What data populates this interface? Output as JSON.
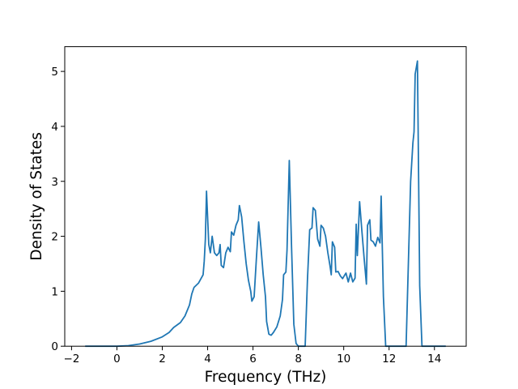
{
  "chart_data": {
    "type": "line",
    "x_label": "Frequency (THz)",
    "y_label": "Density of States",
    "x": [
      -1.4,
      0,
      0.5,
      1,
      1.5,
      2,
      2.3,
      2.5,
      2.8,
      3.0,
      3.2,
      3.3,
      3.4,
      3.6,
      3.8,
      3.85,
      3.9,
      3.95,
      4.05,
      4.12,
      4.2,
      4.3,
      4.4,
      4.5,
      4.55,
      4.6,
      4.7,
      4.8,
      4.9,
      5.0,
      5.05,
      5.15,
      5.25,
      5.35,
      5.4,
      5.5,
      5.6,
      5.7,
      5.8,
      5.9,
      5.95,
      6.05,
      6.15,
      6.25,
      6.35,
      6.45,
      6.55,
      6.6,
      6.7,
      6.8,
      6.9,
      7.05,
      7.2,
      7.3,
      7.35,
      7.45,
      7.5,
      7.6,
      7.7,
      7.8,
      7.9,
      8.0,
      8.2,
      8.3,
      8.4,
      8.5,
      8.6,
      8.65,
      8.75,
      8.85,
      8.95,
      9.0,
      9.1,
      9.2,
      9.3,
      9.4,
      9.45,
      9.5,
      9.6,
      9.65,
      9.75,
      9.85,
      9.95,
      10.05,
      10.1,
      10.2,
      10.3,
      10.4,
      10.5,
      10.55,
      10.6,
      10.7,
      10.8,
      10.9,
      11.0,
      11.05,
      11.15,
      11.2,
      11.3,
      11.4,
      11.5,
      11.6,
      11.65,
      11.75,
      11.85,
      12.0,
      12.5,
      12.75,
      12.85,
      12.95,
      13.05,
      13.1,
      13.15,
      13.25,
      13.35,
      13.45,
      14.0,
      14.5
    ],
    "series": [
      {
        "color": "#1f77b4",
        "values": [
          0,
          0,
          0.01,
          0.04,
          0.09,
          0.17,
          0.25,
          0.34,
          0.43,
          0.55,
          0.75,
          0.95,
          1.07,
          1.15,
          1.3,
          1.55,
          1.95,
          2.82,
          1.85,
          1.7,
          2.0,
          1.7,
          1.65,
          1.7,
          1.85,
          1.47,
          1.43,
          1.7,
          1.8,
          1.72,
          2.08,
          2.02,
          2.2,
          2.3,
          2.56,
          2.35,
          1.9,
          1.5,
          1.2,
          1.0,
          0.82,
          0.9,
          1.6,
          2.26,
          1.8,
          1.3,
          0.9,
          0.45,
          0.22,
          0.2,
          0.25,
          0.35,
          0.55,
          0.85,
          1.3,
          1.35,
          1.75,
          3.38,
          1.8,
          0.4,
          0.05,
          0,
          0,
          0,
          1.2,
          2.12,
          2.15,
          2.52,
          2.47,
          1.95,
          1.82,
          2.2,
          2.15,
          2.0,
          1.7,
          1.45,
          1.3,
          1.9,
          1.8,
          1.35,
          1.36,
          1.28,
          1.23,
          1.3,
          1.33,
          1.17,
          1.33,
          1.17,
          1.24,
          2.22,
          1.65,
          2.63,
          2.1,
          1.6,
          1.13,
          2.2,
          2.3,
          1.93,
          1.9,
          1.82,
          1.98,
          1.88,
          2.73,
          0.9,
          0,
          0,
          0,
          0,
          1.5,
          3.0,
          3.7,
          3.9,
          4.95,
          5.19,
          1.1,
          0,
          0,
          0
        ]
      }
    ],
    "xlim": [
      -2.3,
      15.4
    ],
    "ylim": [
      0,
      5.45
    ],
    "xticks": [
      {
        "value": -2,
        "label": "−2"
      },
      0,
      2,
      4,
      6,
      8,
      10,
      12,
      14
    ],
    "yticks": [
      0,
      1,
      2,
      3,
      4,
      5
    ]
  }
}
